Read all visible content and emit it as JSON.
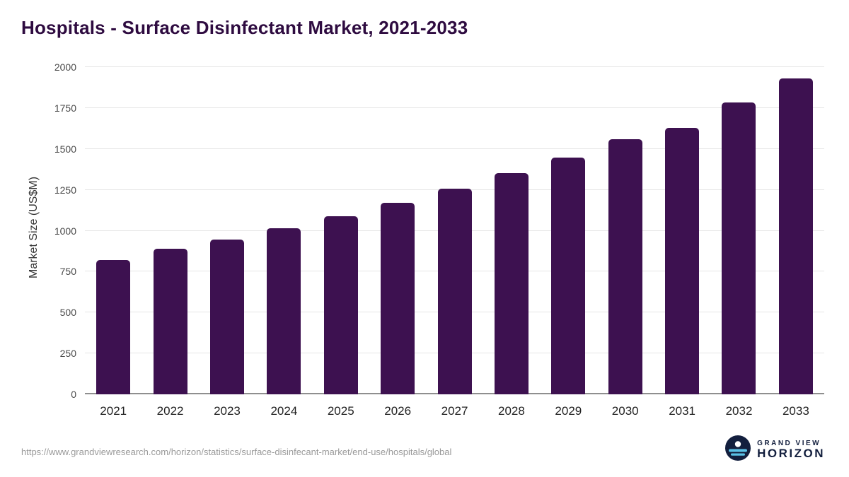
{
  "header": {
    "title": "Hospitals - Surface Disinfectant Market, 2021-2033"
  },
  "chart_data": {
    "type": "bar",
    "title": "Hospitals - Surface Disinfectant Market, 2021-2033",
    "categories": [
      "2021",
      "2022",
      "2023",
      "2024",
      "2025",
      "2026",
      "2027",
      "2028",
      "2029",
      "2030",
      "2031",
      "2032",
      "2033"
    ],
    "values": [
      820,
      890,
      945,
      1015,
      1090,
      1170,
      1255,
      1350,
      1445,
      1560,
      1630,
      1785,
      1930
    ],
    "xlabel": "",
    "ylabel": "Market Size (US$M)",
    "ylim": [
      0,
      2000
    ],
    "yticks": [
      0,
      250,
      500,
      750,
      1000,
      1250,
      1500,
      1750,
      2000
    ],
    "grid": true,
    "legend": "none",
    "bar_color": "#3d1150"
  },
  "footer": {
    "source_url": "https://www.grandviewresearch.com/horizon/statistics/surface-disinfecant-market/end-use/hospitals/global",
    "logo": {
      "icon": "horizon-circle-icon",
      "line1": "GRAND VIEW",
      "line2": "HORIZON",
      "navy": "#131f3e",
      "light_blue": "#5bc2e7"
    }
  }
}
